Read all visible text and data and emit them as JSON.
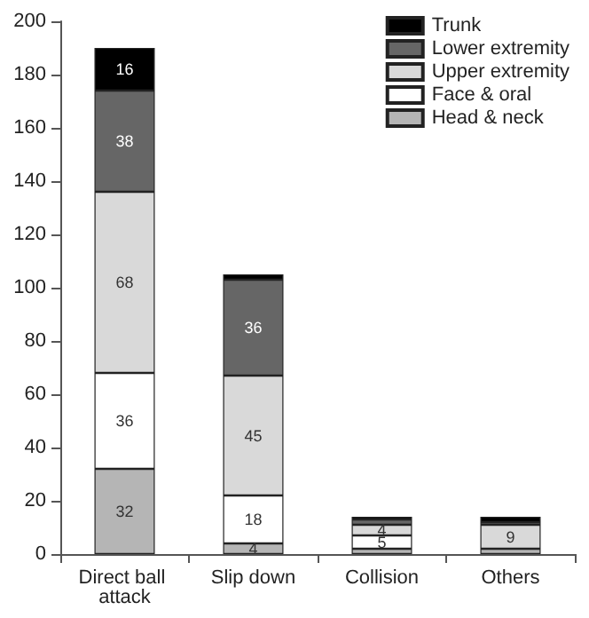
{
  "chart_data": {
    "type": "bar",
    "stacked": true,
    "categories": [
      "Direct ball attack",
      "Slip down",
      "Collision",
      "Others"
    ],
    "series": [
      {
        "name": "Head & neck",
        "color": "#b5b5b5",
        "values": [
          32,
          4,
          2,
          2
        ],
        "value_labels": [
          "32",
          "4",
          null,
          null
        ]
      },
      {
        "name": "Face & oral",
        "color": "#ffffff",
        "values": [
          36,
          18,
          5,
          null
        ],
        "value_labels": [
          "36",
          "18",
          "5",
          null
        ]
      },
      {
        "name": "Upper extremity",
        "color": "#d9d9d9",
        "values": [
          68,
          45,
          4,
          9
        ],
        "value_labels": [
          "68",
          "45",
          "4",
          "9"
        ]
      },
      {
        "name": "Lower extremity",
        "color": "#666666",
        "values": [
          38,
          36,
          2,
          1
        ],
        "value_labels": [
          "38",
          "36",
          null,
          null
        ]
      },
      {
        "name": "Trunk",
        "color": "#000000",
        "values": [
          16,
          2,
          1,
          2
        ],
        "value_labels": [
          "16",
          null,
          null,
          null
        ]
      }
    ],
    "ylim": [
      0,
      200
    ],
    "yticks": [
      0,
      20,
      40,
      60,
      80,
      100,
      120,
      140,
      160,
      180,
      200
    ],
    "legend": "top right",
    "grid": false
  }
}
